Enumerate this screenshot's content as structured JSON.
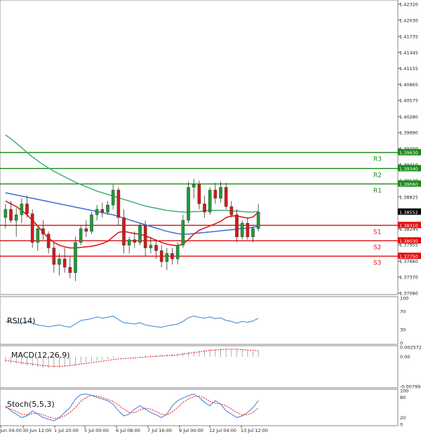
{
  "chart_data": {
    "type": "candlestick",
    "price_axis": {
      "min": 1.3708,
      "max": 1.4232,
      "ticks": [
        "1.42320",
        "1.42030",
        "1.41735",
        "1.41445",
        "1.41155",
        "1.40865",
        "1.40575",
        "1.40280",
        "1.39990",
        "1.39700",
        "1.39410",
        "1.39120",
        "1.38825",
        "1.38535",
        "1.38245",
        "1.37955",
        "1.37660",
        "1.37370",
        "1.37080"
      ]
    },
    "current_price": "1.38552",
    "levels": [
      {
        "name": "R3",
        "value": "1.39630",
        "color": "#1a8a1a"
      },
      {
        "name": "R2",
        "value": "1.39340",
        "color": "#1a8a1a"
      },
      {
        "name": "R1",
        "value": "1.39060",
        "color": "#1a8a1a"
      },
      {
        "name": "S1",
        "value": "1.38310",
        "color": "#e01010"
      },
      {
        "name": "S2",
        "value": "1.38030",
        "color": "#e01010"
      },
      {
        "name": "S3",
        "value": "1.37750",
        "color": "#e01010"
      }
    ],
    "time_labels": [
      "Jun 04:00",
      "30 Jun 12:00",
      "1 Jul 20:00",
      "5 Jul 00:00",
      "6 Jul 08:00",
      "7 Jul 16:00",
      "9 Jul 00:00",
      "12 Jul 04:00",
      "13 Jul 12:00"
    ],
    "candles": [
      [
        1.3845,
        1.387,
        1.3825,
        1.386
      ],
      [
        1.386,
        1.3875,
        1.3835,
        1.384
      ],
      [
        1.384,
        1.3862,
        1.381,
        1.385
      ],
      [
        1.385,
        1.388,
        1.3835,
        1.387
      ],
      [
        1.387,
        1.3885,
        1.3845,
        1.3852
      ],
      [
        1.3852,
        1.386,
        1.379,
        1.38
      ],
      [
        1.38,
        1.383,
        1.3785,
        1.3825
      ],
      [
        1.3825,
        1.384,
        1.3805,
        1.3815
      ],
      [
        1.3815,
        1.382,
        1.378,
        1.379
      ],
      [
        1.379,
        1.38,
        1.3745,
        1.376
      ],
      [
        1.376,
        1.378,
        1.374,
        1.377
      ],
      [
        1.377,
        1.379,
        1.3745,
        1.3755
      ],
      [
        1.3755,
        1.3775,
        1.3735,
        1.3745
      ],
      [
        1.3745,
        1.381,
        1.373,
        1.38
      ],
      [
        1.38,
        1.383,
        1.3795,
        1.3825
      ],
      [
        1.3825,
        1.384,
        1.381,
        1.382
      ],
      [
        1.382,
        1.3855,
        1.3815,
        1.385
      ],
      [
        1.385,
        1.3868,
        1.384,
        1.386
      ],
      [
        1.386,
        1.3872,
        1.3845,
        1.3855
      ],
      [
        1.3855,
        1.3875,
        1.385,
        1.3868
      ],
      [
        1.3868,
        1.3905,
        1.386,
        1.3895
      ],
      [
        1.3895,
        1.39,
        1.383,
        1.3845
      ],
      [
        1.3845,
        1.386,
        1.378,
        1.3795
      ],
      [
        1.3795,
        1.381,
        1.378,
        1.3805
      ],
      [
        1.3805,
        1.382,
        1.379,
        1.38
      ],
      [
        1.38,
        1.3835,
        1.3795,
        1.383
      ],
      [
        1.383,
        1.384,
        1.3775,
        1.379
      ],
      [
        1.379,
        1.381,
        1.378,
        1.3795
      ],
      [
        1.3795,
        1.3805,
        1.377,
        1.3785
      ],
      [
        1.3785,
        1.3795,
        1.3755,
        1.3765
      ],
      [
        1.3765,
        1.379,
        1.375,
        1.378
      ],
      [
        1.378,
        1.379,
        1.376,
        1.377
      ],
      [
        1.377,
        1.38,
        1.376,
        1.3795
      ],
      [
        1.3795,
        1.385,
        1.379,
        1.384
      ],
      [
        1.384,
        1.391,
        1.3835,
        1.39
      ],
      [
        1.39,
        1.3915,
        1.388,
        1.3905
      ],
      [
        1.3905,
        1.3912,
        1.386,
        1.387
      ],
      [
        1.387,
        1.3885,
        1.3845,
        1.3855
      ],
      [
        1.3855,
        1.39,
        1.385,
        1.3895
      ],
      [
        1.3895,
        1.3908,
        1.387,
        1.388
      ],
      [
        1.388,
        1.391,
        1.3872,
        1.39
      ],
      [
        1.39,
        1.3908,
        1.386,
        1.3865
      ],
      [
        1.3865,
        1.3875,
        1.3845,
        1.385
      ],
      [
        1.385,
        1.386,
        1.38,
        1.381
      ],
      [
        1.381,
        1.384,
        1.3805,
        1.3835
      ],
      [
        1.3835,
        1.3845,
        1.3805,
        1.381
      ],
      [
        1.381,
        1.383,
        1.38,
        1.3825
      ],
      [
        1.3825,
        1.387,
        1.382,
        1.3855
      ]
    ],
    "ma_green": [
      1.3995,
      1.3988,
      1.398,
      1.3972,
      1.3963,
      1.3955,
      1.3948,
      1.3941,
      1.3935,
      1.3929,
      1.3924,
      1.3919,
      1.3914,
      1.3909,
      1.3905,
      1.3901,
      1.3897,
      1.3893,
      1.389,
      1.3887,
      1.3884,
      1.3881,
      1.3878,
      1.3875,
      1.3872,
      1.3869,
      1.3866,
      1.3864,
      1.3862,
      1.386,
      1.3858,
      1.3857,
      1.3856,
      1.3855,
      1.3855,
      1.3856,
      1.3856,
      1.3857,
      1.3858,
      1.3858,
      1.3858,
      1.3858,
      1.3857,
      1.3857,
      1.3856,
      1.3855,
      1.3855,
      1.3856
    ],
    "ma_blue": [
      1.389,
      1.3888,
      1.3886,
      1.3884,
      1.3882,
      1.388,
      1.3878,
      1.3876,
      1.3874,
      1.3872,
      1.387,
      1.3868,
      1.3866,
      1.3864,
      1.3862,
      1.386,
      1.3858,
      1.3856,
      1.3854,
      1.3852,
      1.385,
      1.3847,
      1.3844,
      1.3841,
      1.3838,
      1.3835,
      1.3832,
      1.3829,
      1.3826,
      1.3823,
      1.382,
      1.3818,
      1.3816,
      1.3815,
      1.3815,
      1.3816,
      1.3817,
      1.3818,
      1.3819,
      1.382,
      1.3821,
      1.3822,
      1.3823,
      1.3824,
      1.3825,
      1.3826,
      1.3827,
      1.383
    ],
    "ma_red": [
      1.3875,
      1.387,
      1.3865,
      1.3858,
      1.385,
      1.384,
      1.383,
      1.3818,
      1.3808,
      1.38,
      1.3795,
      1.3792,
      1.379,
      1.379,
      1.3791,
      1.3792,
      1.3793,
      1.3795,
      1.3798,
      1.3802,
      1.381,
      1.3818,
      1.382,
      1.3818,
      1.3816,
      1.3815,
      1.3812,
      1.3808,
      1.3804,
      1.38,
      1.3797,
      1.3795,
      1.3794,
      1.3797,
      1.3805,
      1.3815,
      1.3822,
      1.3826,
      1.383,
      1.3834,
      1.3838,
      1.3845,
      1.3848,
      1.3848,
      1.3846,
      1.3844,
      1.3846,
      1.3855
    ],
    "indicators": [
      {
        "name": "RSI(14)",
        "axis": [
          "100",
          "70",
          "30",
          "0"
        ],
        "values": [
          48,
          46,
          44,
          45,
          47,
          44,
          40,
          38,
          36,
          38,
          40,
          37,
          35,
          42,
          50,
          52,
          54,
          58,
          55,
          57,
          60,
          52,
          45,
          44,
          42,
          45,
          40,
          38,
          36,
          35,
          38,
          40,
          42,
          48,
          56,
          60,
          57,
          55,
          58,
          54,
          56,
          50,
          48,
          44,
          48,
          46,
          49,
          55
        ]
      },
      {
        "name": "MACD(12,26,9)",
        "axis": [
          "0.002572",
          "0.00",
          "-0.007991"
        ],
        "signal": [
          -0.001,
          -0.0012,
          -0.0014,
          -0.0016,
          -0.0018,
          -0.002,
          -0.0022,
          -0.0024,
          -0.0025,
          -0.0026,
          -0.0026,
          -0.0025,
          -0.0024,
          -0.0022,
          -0.002,
          -0.0018,
          -0.0016,
          -0.0014,
          -0.0012,
          -0.001,
          -0.0008,
          -0.0006,
          -0.0005,
          -0.0004,
          -0.0003,
          -0.0002,
          -0.0001,
          0.0,
          0.0001,
          0.0002,
          0.0003,
          0.0004,
          0.0005,
          0.0007,
          0.0009,
          0.0011,
          0.0013,
          0.0015,
          0.0017,
          0.0018,
          0.0019,
          0.002,
          0.002,
          0.002,
          0.0019,
          0.0018,
          0.0017,
          0.0016
        ],
        "hist": [
          -0.0015,
          -0.0018,
          -0.002,
          -0.0022,
          -0.0024,
          -0.0026,
          -0.0028,
          -0.003,
          -0.0031,
          -0.003,
          -0.0029,
          -0.0027,
          -0.0025,
          -0.0022,
          -0.0019,
          -0.0016,
          -0.0013,
          -0.001,
          -0.0008,
          -0.0006,
          -0.0004,
          -0.0002,
          -0.0001,
          0.0,
          0.0001,
          0.0002,
          0.0003,
          0.0004,
          0.0005,
          0.0006,
          0.0007,
          0.0008,
          0.0009,
          0.0011,
          0.0013,
          0.0015,
          0.0017,
          0.0019,
          0.002,
          0.0021,
          0.0022,
          0.0022,
          0.0021,
          0.002,
          0.0019,
          0.0017,
          0.0015,
          0.0014
        ]
      },
      {
        "name": "Stoch(5,5,3)",
        "axis": [
          "100",
          "80",
          "20",
          "0"
        ],
        "k": [
          55,
          40,
          30,
          20,
          25,
          40,
          30,
          20,
          15,
          10,
          20,
          35,
          50,
          75,
          88,
          90,
          86,
          80,
          75,
          70,
          60,
          40,
          25,
          30,
          45,
          55,
          45,
          35,
          28,
          20,
          30,
          55,
          70,
          78,
          85,
          90,
          80,
          65,
          55,
          70,
          60,
          40,
          30,
          20,
          25,
          35,
          50,
          70
        ],
        "d": [
          50,
          45,
          38,
          30,
          28,
          32,
          33,
          28,
          22,
          17,
          18,
          25,
          35,
          50,
          68,
          80,
          86,
          84,
          80,
          74,
          68,
          57,
          45,
          35,
          35,
          42,
          48,
          45,
          38,
          30,
          28,
          36,
          50,
          65,
          75,
          82,
          84,
          78,
          68,
          62,
          60,
          55,
          45,
          35,
          28,
          28,
          35,
          48
        ]
      }
    ]
  }
}
